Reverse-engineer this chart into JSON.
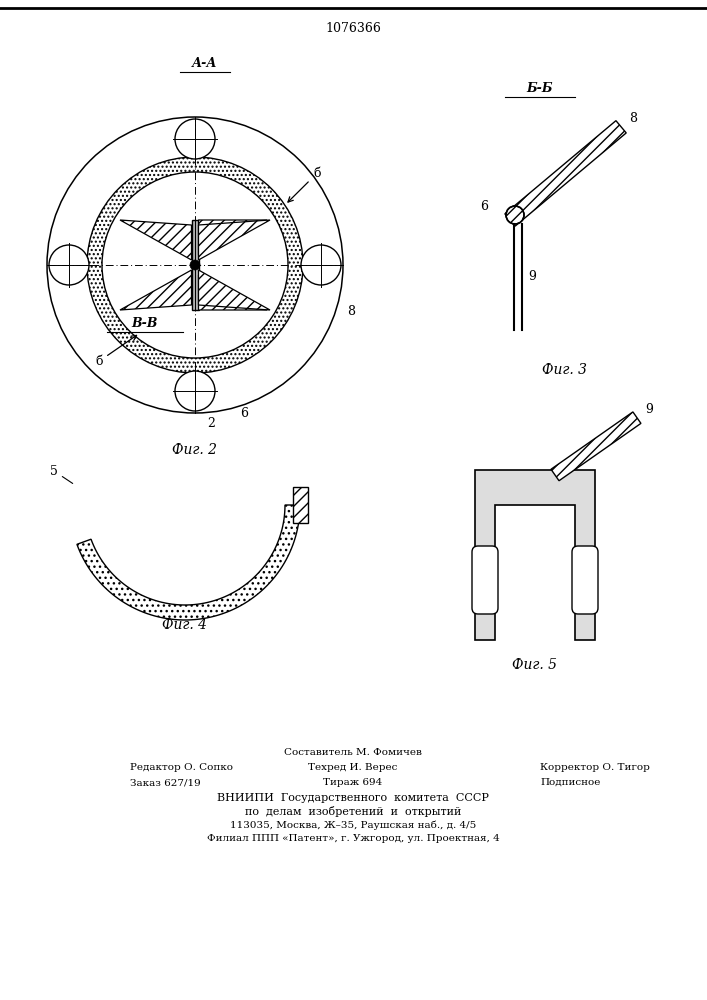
{
  "title": "1076366",
  "background_color": "#ffffff",
  "line_color": "#000000",
  "fig2_label": "Фиг. 2",
  "fig3_label": "Фиг. 3",
  "fig4_label": "Фиг. 4",
  "fig5_label": "Фиг. 5",
  "label_AA": "А-А",
  "label_BB": "Б-Б",
  "label_VV": "В-В",
  "footer_comp": "Составитель М. Фомичев",
  "footer_ed": "Редактор О. Сопко",
  "footer_tech": "Техред И. Верес",
  "footer_corr": "Корректор О. Тигор",
  "footer_order": "Заказ 627/19",
  "footer_tirazh": "Тираж 694",
  "footer_podp": "Подписное",
  "footer_vn1": "ВНИИПИ  Государственного  комитета  СССР",
  "footer_vn2": "по  делам  изобретений  и  открытий",
  "footer_vn3": "113035, Москва, Ж–35, Раушская наб., д. 4/5",
  "footer_vn4": "Филиал ППП «Патент», г. Ужгород, ул. Проектная, 4"
}
